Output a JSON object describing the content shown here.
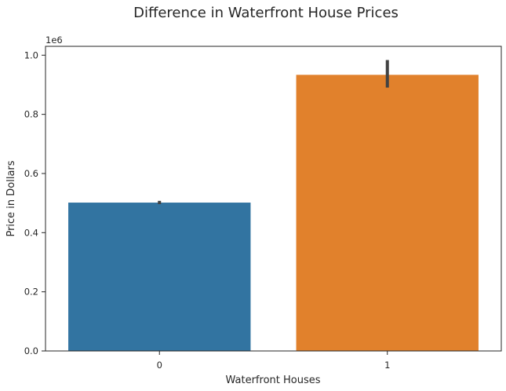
{
  "chart_data": {
    "type": "bar",
    "title": "Difference in Waterfront House Prices",
    "xlabel": "Waterfront Houses",
    "ylabel": "Price in Dollars",
    "y_offset_label": "1e6",
    "categories": [
      "0",
      "1"
    ],
    "values": [
      0.5016,
      0.9336
    ],
    "error_bars": [
      [
        0.4965,
        0.5075
      ],
      [
        0.8905,
        0.9836
      ]
    ],
    "colors": [
      "#3274a1",
      "#e1812c"
    ],
    "ylim": [
      0,
      1.03
    ],
    "yticks": [
      0.0,
      0.2,
      0.4,
      0.6,
      0.8,
      1.0
    ],
    "ytick_labels": [
      "0.0",
      "0.2",
      "0.4",
      "0.6",
      "0.8",
      "1.0"
    ],
    "grid": false,
    "legend": "none"
  }
}
